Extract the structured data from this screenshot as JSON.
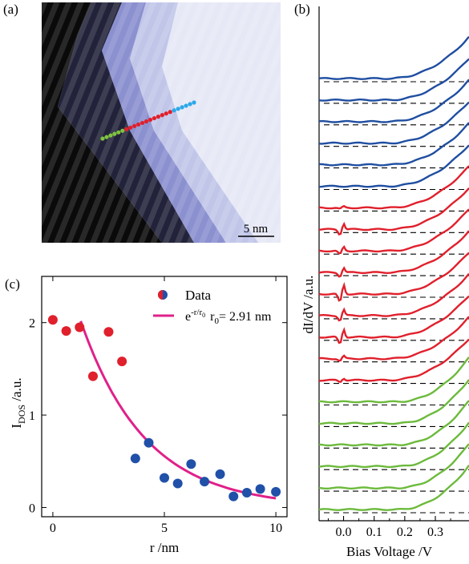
{
  "panels": {
    "a": {
      "label": "(a)"
    },
    "b": {
      "label": "(b)"
    },
    "c": {
      "label": "(c)"
    }
  },
  "stm_image": {
    "scale_bar_label": "5 nm",
    "colors": {
      "dark": "#0a0a0a",
      "bright": "#e6e8f6",
      "edge": "#7a80c8",
      "green": "#7fc241",
      "red": "#e0202c",
      "cyan": "#2aa8e8"
    },
    "dots": {
      "green": 6,
      "red": 12,
      "cyan": 6
    }
  },
  "chart_data": [
    {
      "type": "scatter",
      "panel": "(c)",
      "xlabel": "r /nm",
      "ylabel": "I",
      "ylabel_sub": "DOS",
      "ylabel_suffix": " /a.u.",
      "xlim": [
        -0.5,
        10.5
      ],
      "ylim": [
        -0.1,
        2.5
      ],
      "xticks": [
        0,
        5,
        10
      ],
      "yticks": [
        0,
        1,
        2
      ],
      "legend": {
        "placement": "top-right",
        "data_label": "Data",
        "fit_label_base": "e",
        "fit_label_exp": "-r/r",
        "fit_label_exp_sub": "0",
        "fit_param": "r",
        "fit_param_sub": "0",
        "fit_param_value": "= 2.91 nm"
      },
      "series": [
        {
          "color": "#e0202c",
          "x": [
            0.0,
            0.6,
            1.2,
            1.8,
            2.5,
            3.1
          ],
          "y": [
            2.03,
            1.91,
            1.95,
            1.42,
            1.9,
            1.58
          ]
        },
        {
          "color": "#2050a8",
          "x": [
            3.7,
            4.3,
            5.0,
            5.6,
            6.2,
            6.8,
            7.5,
            8.1,
            8.7,
            9.3,
            10.0
          ],
          "y": [
            0.53,
            0.7,
            0.32,
            0.26,
            0.47,
            0.28,
            0.36,
            0.12,
            0.16,
            0.2,
            0.17
          ]
        }
      ],
      "fit": {
        "color": "#e0208a",
        "r0": 2.91,
        "amplitude": 3.1,
        "x_start": 1.25,
        "x_end": 10.0
      }
    },
    {
      "type": "line",
      "panel": "(b)",
      "xlabel": "Bias Voltage /V",
      "ylabel": "dI/dV /a.u.",
      "xlim": [
        -0.08,
        0.41
      ],
      "xticks": [
        0.0,
        0.1,
        0.2,
        0.3
      ],
      "xtick_labels": [
        "0.0",
        "0.1",
        "0.2",
        "0.3"
      ],
      "offset_baselines": "dashed",
      "series": [
        {
          "color": "#1f4ea1",
          "count": 6,
          "zero_bias_peak": 0.0
        },
        {
          "color": "#e0202c",
          "count": 9,
          "zero_bias_peak": [
            0.2,
            0.9,
            0.6,
            0.7,
            1.4,
            0.9,
            1.2,
            0.4,
            0.3
          ]
        },
        {
          "color": "#6cba3c",
          "count": 6,
          "zero_bias_peak": 0.0
        }
      ]
    }
  ]
}
